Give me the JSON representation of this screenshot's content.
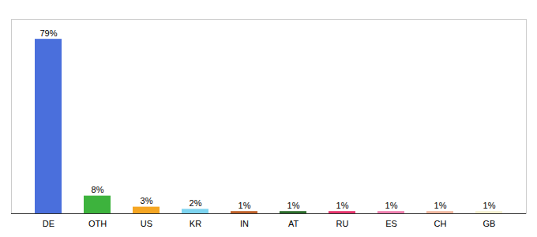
{
  "chart_data": {
    "type": "bar",
    "categories": [
      "DE",
      "OTH",
      "US",
      "KR",
      "IN",
      "AT",
      "RU",
      "ES",
      "CH",
      "GB"
    ],
    "values": [
      79,
      8,
      3,
      2,
      1,
      1,
      1,
      1,
      1,
      1
    ],
    "value_labels": [
      "79%",
      "8%",
      "3%",
      "2%",
      "1%",
      "1%",
      "1%",
      "1%",
      "1%",
      "1%"
    ],
    "colors": [
      "#4a6fdc",
      "#3db33d",
      "#f5a623",
      "#7dd4f0",
      "#c0622a",
      "#2d6e2d",
      "#e8356d",
      "#f080b0",
      "#f0b8a0",
      "#f5f0d0"
    ],
    "ylim": [
      0,
      88
    ],
    "data_labels": true,
    "tick_labels": "x",
    "grid": false
  }
}
